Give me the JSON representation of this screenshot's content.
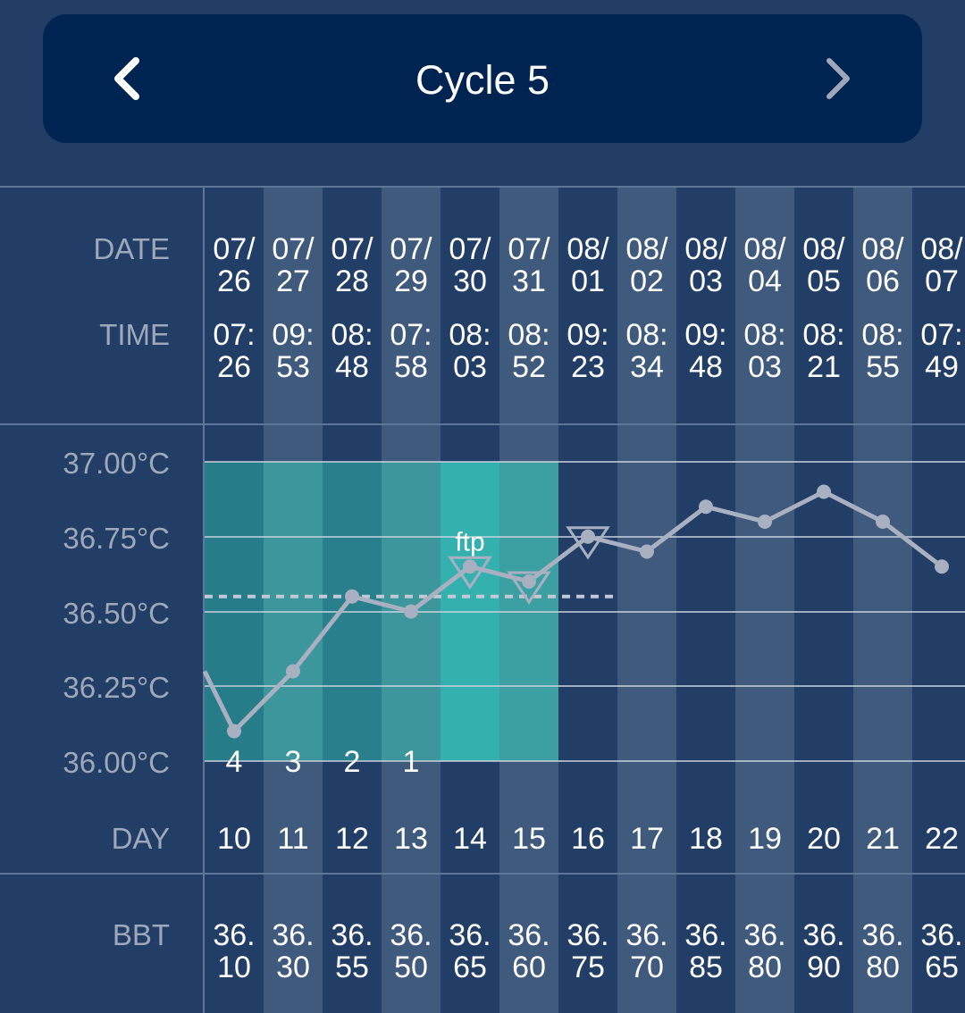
{
  "header": {
    "title": "Cycle 5",
    "prev_icon": "chevron-left-icon",
    "next_icon": "chevron-right-icon"
  },
  "row_labels": {
    "date": "DATE",
    "time": "TIME",
    "day": "DAY",
    "bbt": "BBT"
  },
  "columns": [
    {
      "date": [
        "07/",
        "26"
      ],
      "time": [
        "07:",
        "26"
      ],
      "day": "10",
      "bbt": [
        "36.",
        "10"
      ]
    },
    {
      "date": [
        "07/",
        "27"
      ],
      "time": [
        "09:",
        "53"
      ],
      "day": "11",
      "bbt": [
        "36.",
        "30"
      ]
    },
    {
      "date": [
        "07/",
        "28"
      ],
      "time": [
        "08:",
        "48"
      ],
      "day": "12",
      "bbt": [
        "36.",
        "55"
      ]
    },
    {
      "date": [
        "07/",
        "29"
      ],
      "time": [
        "07:",
        "58"
      ],
      "day": "13",
      "bbt": [
        "36.",
        "50"
      ]
    },
    {
      "date": [
        "07/",
        "30"
      ],
      "time": [
        "08:",
        "03"
      ],
      "day": "14",
      "bbt": [
        "36.",
        "65"
      ]
    },
    {
      "date": [
        "07/",
        "31"
      ],
      "time": [
        "08:",
        "52"
      ],
      "day": "15",
      "bbt": [
        "36.",
        "60"
      ]
    },
    {
      "date": [
        "08/",
        "01"
      ],
      "time": [
        "09:",
        "23"
      ],
      "day": "16",
      "bbt": [
        "36.",
        "75"
      ]
    },
    {
      "date": [
        "08/",
        "02"
      ],
      "time": [
        "08:",
        "34"
      ],
      "day": "17",
      "bbt": [
        "36.",
        "70"
      ]
    },
    {
      "date": [
        "08/",
        "03"
      ],
      "time": [
        "09:",
        "48"
      ],
      "day": "18",
      "bbt": [
        "36.",
        "85"
      ]
    },
    {
      "date": [
        "08/",
        "04"
      ],
      "time": [
        "08:",
        "03"
      ],
      "day": "19",
      "bbt": [
        "36.",
        "80"
      ]
    },
    {
      "date": [
        "08/",
        "05"
      ],
      "time": [
        "08:",
        "21"
      ],
      "day": "20",
      "bbt": [
        "36.",
        "90"
      ]
    },
    {
      "date": [
        "08/",
        "06"
      ],
      "time": [
        "08:",
        "55"
      ],
      "day": "21",
      "bbt": [
        "36.",
        "80"
      ]
    },
    {
      "date": [
        "08/",
        "07"
      ],
      "time": [
        "07:",
        "49"
      ],
      "day": "22",
      "bbt": [
        "36.",
        "65"
      ]
    }
  ],
  "chart_data": {
    "type": "line",
    "x": [
      10,
      11,
      12,
      13,
      14,
      15,
      16,
      17,
      18,
      19,
      20,
      21,
      22
    ],
    "xlabel": "DAY",
    "series": [
      {
        "values": [
          36.1,
          36.3,
          36.55,
          36.5,
          36.65,
          36.6,
          36.75,
          36.7,
          36.85,
          36.8,
          36.9,
          36.8,
          36.65
        ],
        "color": "#a8b0c2"
      }
    ],
    "leading_value": 36.3,
    "ylim": [
      36.0,
      37.0
    ],
    "y_ticks": [
      "36.00°C",
      "36.25°C",
      "36.50°C",
      "36.75°C",
      "37.00°C"
    ],
    "grid": true,
    "coverline": {
      "value": 36.55,
      "from_day": 10,
      "to_day": 16,
      "color": "#c2c8d4"
    },
    "fertile_window": [
      {
        "day": 10,
        "color": "#277c8a"
      },
      {
        "day": 11,
        "color": "#3c969c"
      },
      {
        "day": 12,
        "color": "#2a7f8c"
      },
      {
        "day": 13,
        "color": "#3c969c"
      },
      {
        "day": 14,
        "color": "#34b0ae"
      },
      {
        "day": 15,
        "color": "#3c9fa2"
      }
    ],
    "countdown_labels": [
      {
        "day": 10,
        "text": "4"
      },
      {
        "day": 11,
        "text": "3"
      },
      {
        "day": 12,
        "text": "2"
      },
      {
        "day": 13,
        "text": "1"
      }
    ],
    "markers": [
      {
        "day": 14,
        "type": "triangle-down",
        "label": "ftp"
      },
      {
        "day": 15,
        "type": "triangle-down"
      },
      {
        "day": 16,
        "type": "triangle-down"
      }
    ]
  },
  "colors": {
    "background": "#223e66",
    "header": "#002451",
    "column_dark": "#223e66",
    "column_light": "#3f5a7d",
    "grid_line": "#c9d2de",
    "label_gray": "#9ea8ba"
  }
}
